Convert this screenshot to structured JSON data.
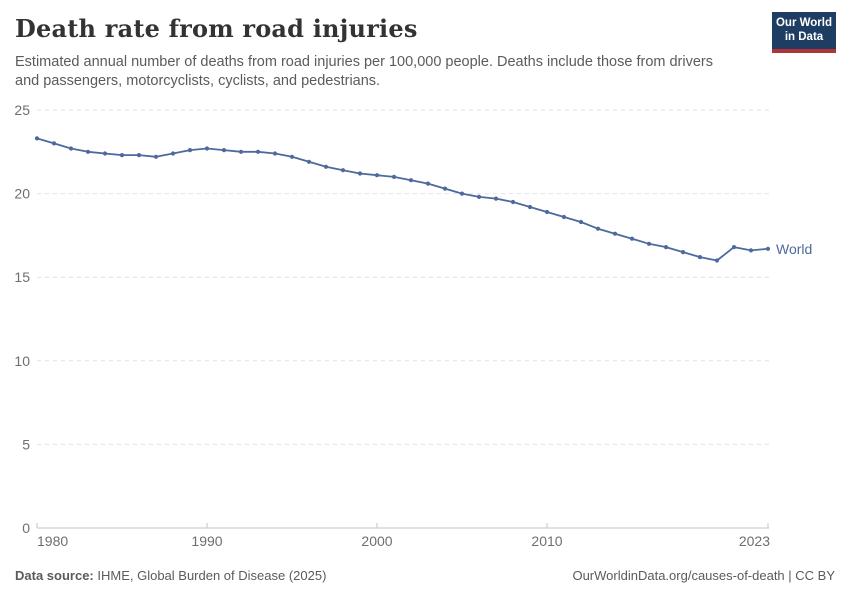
{
  "header": {
    "title": "Death rate from road injuries",
    "subtitle_lines": [
      "Estimated annual number of deaths from road injuries per 100,000 people. Deaths include those from drivers",
      "and passengers, motorcyclists, cyclists, and pedestrians."
    ],
    "logo": {
      "line1": "Our World",
      "line2": "in Data",
      "bg_color": "#1d3d63",
      "accent_color": "#b03335"
    }
  },
  "chart_data": {
    "type": "line",
    "title": "Death rate from road injuries",
    "xlabel": "",
    "ylabel": "",
    "xlim": [
      1980,
      2023
    ],
    "ylim": [
      0,
      25
    ],
    "x_ticks": [
      1980,
      1990,
      2000,
      2010,
      2023
    ],
    "y_ticks": [
      0,
      5,
      10,
      15,
      20,
      25
    ],
    "grid": "horizontal-dashed",
    "legend_position": "end-of-line",
    "x": [
      1980,
      1981,
      1982,
      1983,
      1984,
      1985,
      1986,
      1987,
      1988,
      1989,
      1990,
      1991,
      1992,
      1993,
      1994,
      1995,
      1996,
      1997,
      1998,
      1999,
      2000,
      2001,
      2002,
      2003,
      2004,
      2005,
      2006,
      2007,
      2008,
      2009,
      2010,
      2011,
      2012,
      2013,
      2014,
      2015,
      2016,
      2017,
      2018,
      2019,
      2020,
      2021,
      2022,
      2023
    ],
    "series": [
      {
        "name": "World",
        "color": "#4C6A9C",
        "values": [
          23.3,
          23.0,
          22.7,
          22.5,
          22.4,
          22.3,
          22.3,
          22.2,
          22.4,
          22.6,
          22.7,
          22.6,
          22.5,
          22.5,
          22.4,
          22.2,
          21.9,
          21.6,
          21.4,
          21.2,
          21.1,
          21.0,
          20.8,
          20.6,
          20.3,
          20.0,
          19.8,
          19.7,
          19.5,
          19.2,
          18.9,
          18.6,
          18.3,
          17.9,
          17.6,
          17.3,
          17.0,
          16.8,
          16.5,
          16.2,
          16.0,
          16.8,
          16.6,
          16.7
        ]
      }
    ]
  },
  "footer": {
    "source_label": "Data source:",
    "source_text": " IHME, Global Burden of Disease (2025)",
    "link_text": "OurWorldinData.org/causes-of-death | CC BY"
  }
}
